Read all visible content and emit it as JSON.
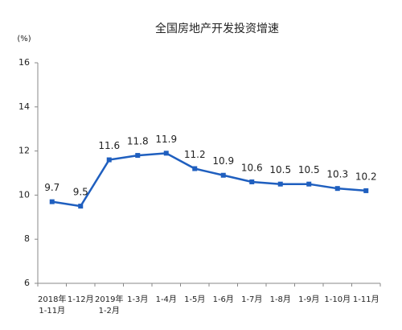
{
  "chart_data": {
    "type": "line",
    "title": "全国房地产开发投资增速",
    "y_unit": "(%)",
    "categories": [
      "2018年 1-11月",
      "1-12月",
      "2019年 1-2月",
      "1-3月",
      "1-4月",
      "1-5月",
      "1-6月",
      "1-7月",
      "1-8月",
      "1-9月",
      "1-10月",
      "1-11月"
    ],
    "values": [
      9.7,
      9.5,
      11.6,
      11.8,
      11.9,
      11.2,
      10.9,
      10.6,
      10.5,
      10.5,
      10.3,
      10.2
    ],
    "color": "#1f5fbf",
    "ylim": [
      6,
      16
    ],
    "yticks": [
      6,
      8,
      10,
      12,
      14,
      16
    ],
    "grid": false
  }
}
